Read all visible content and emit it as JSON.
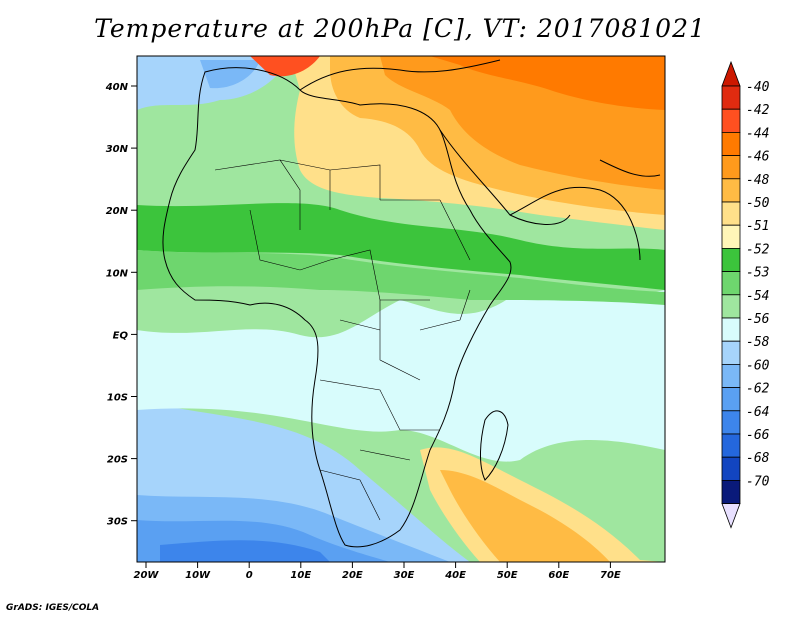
{
  "title": "Temperature at 200hPa [C], VT: 2017081021",
  "credit": "GrADS: IGES/COLA",
  "lat_labels": [
    "40N",
    "30N",
    "20N",
    "10N",
    "EQ",
    "10S",
    "20S",
    "30S"
  ],
  "lon_labels": [
    "20W",
    "10W",
    "0",
    "10E",
    "20E",
    "30E",
    "40E",
    "50E",
    "60E",
    "70E"
  ],
  "colorbar": {
    "labels": [
      "-40",
      "-42",
      "-44",
      "-46",
      "-48",
      "-50",
      "-51",
      "-52",
      "-53",
      "-54",
      "-56",
      "-58",
      "-60",
      "-62",
      "-64",
      "-66",
      "-68",
      "-70"
    ],
    "colors": [
      "#e02b10",
      "#ff5020",
      "#ff7a00",
      "#ff9a1c",
      "#ffbb44",
      "#ffe08a",
      "#fff6b8",
      "#3cc43c",
      "#6ed66e",
      "#9fe69f",
      "#d8fcfc",
      "#a6d4fb",
      "#7ab8f7",
      "#5aa0f2",
      "#3d85eb",
      "#2467dd",
      "#1245c0",
      "#0a1a7a"
    ],
    "top_arrow_color": "#cc1800",
    "bottom_arrow_color": "#e8e0ff"
  }
}
